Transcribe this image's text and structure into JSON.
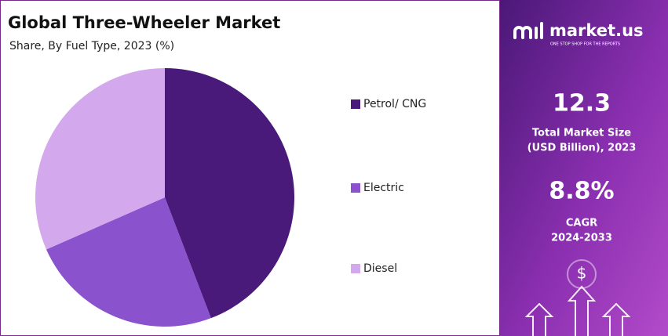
{
  "chart_data": {
    "type": "pie",
    "title": "Global Three-Wheeler Market",
    "subtitle": "Share, By Fuel Type, 2023 (%)",
    "categories": [
      "Petrol/ CNG",
      "Electric",
      "Diesel"
    ],
    "values": [
      44.2,
      24.2,
      31.6
    ],
    "colors": [
      "#4a1a7a",
      "#8a52cc",
      "#d4a8ec"
    ]
  },
  "panel": {
    "brand": "market.us",
    "tagline": "ONE STOP SHOP FOR THE REPORTS",
    "stats": [
      {
        "value": "12.3",
        "label_lines": [
          "Total Market Size",
          "(USD Billion), 2023"
        ]
      },
      {
        "value": "8.8%",
        "label_lines": [
          "CAGR",
          "2024-2033"
        ]
      }
    ],
    "icon": "$"
  }
}
